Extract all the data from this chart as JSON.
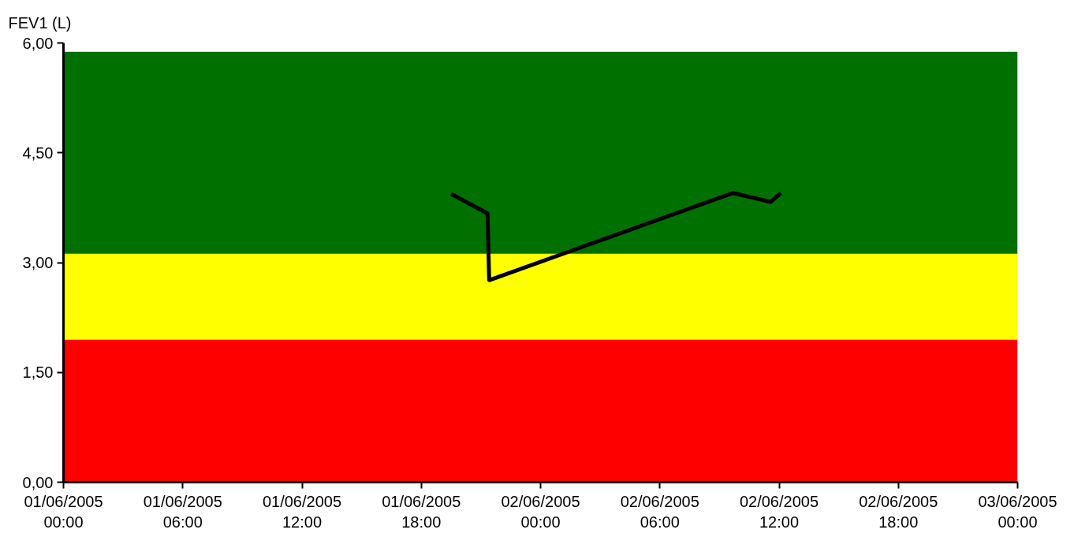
{
  "chart_data": {
    "type": "line",
    "ylabel": "FEV1 (L)",
    "x": [
      "2005-06-01T19:30",
      "2005-06-01T21:20",
      "2005-06-01T21:25",
      "2005-06-02T09:40",
      "2005-06-02T11:35",
      "2005-06-02T12:05"
    ],
    "series": [
      {
        "color": "#000000",
        "values": [
          3.94,
          3.67,
          2.76,
          3.95,
          3.83,
          3.95
        ]
      }
    ],
    "xlim": [
      "2005-06-01T00:00",
      "2005-06-03T00:00"
    ],
    "xticks": [
      {
        "value": "2005-06-01T00:00",
        "label": "01/06/2005\n00:00"
      },
      {
        "value": "2005-06-01T06:00",
        "label": "01/06/2005\n06:00"
      },
      {
        "value": "2005-06-01T12:00",
        "label": "01/06/2005\n12:00"
      },
      {
        "value": "2005-06-01T18:00",
        "label": "01/06/2005\n18:00"
      },
      {
        "value": "2005-06-02T00:00",
        "label": "02/06/2005\n00:00"
      },
      {
        "value": "2005-06-02T06:00",
        "label": "02/06/2005\n06:00"
      },
      {
        "value": "2005-06-02T12:00",
        "label": "02/06/2005\n12:00"
      },
      {
        "value": "2005-06-02T18:00",
        "label": "02/06/2005\n18:00"
      },
      {
        "value": "2005-06-03T00:00",
        "label": "03/06/2005\n00:00"
      }
    ],
    "ylim": [
      0,
      6
    ],
    "yticks": [
      {
        "value": 0,
        "label": "0,00"
      },
      {
        "value": 1.5,
        "label": "1,50"
      },
      {
        "value": 3,
        "label": "3,00"
      },
      {
        "value": 4.5,
        "label": "4,50"
      },
      {
        "value": 6,
        "label": "6,00"
      }
    ],
    "bands": [
      {
        "axis": "y",
        "from": 0,
        "to": 1.95,
        "color": "#ff0000"
      },
      {
        "axis": "y",
        "from": 1.95,
        "to": 3.12,
        "color": "#ffff00"
      },
      {
        "axis": "y",
        "from": 3.12,
        "to": 5.88,
        "color": "#007000"
      }
    ],
    "grid": false,
    "line_style": "solid"
  }
}
